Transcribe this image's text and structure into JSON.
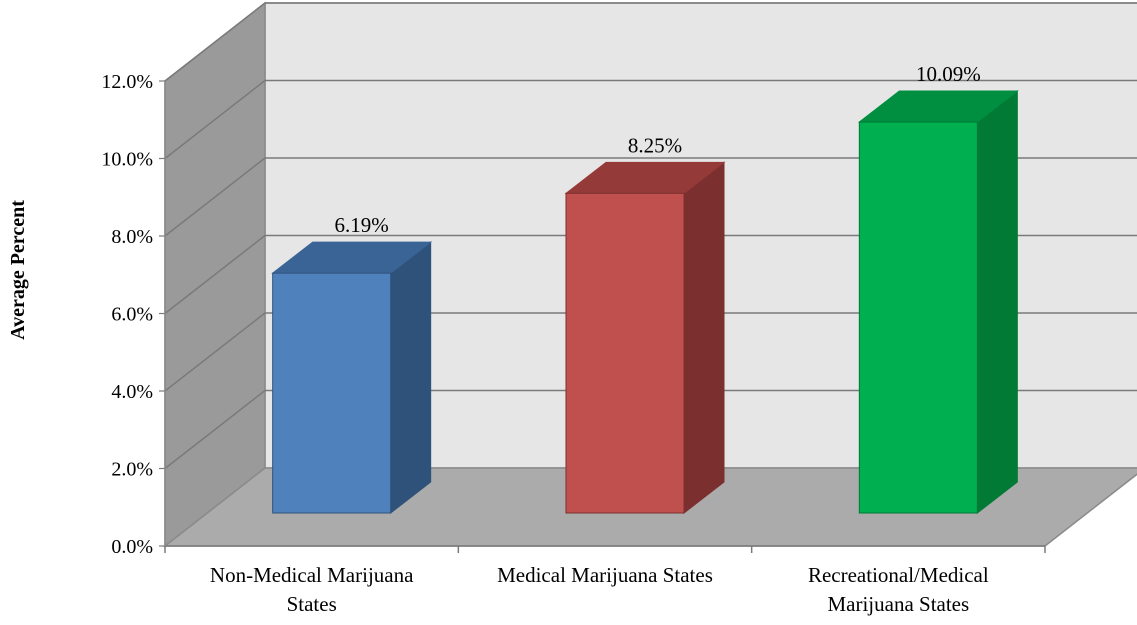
{
  "chart_data": {
    "type": "bar",
    "ylabel": "Average Percent",
    "ylim": [
      0,
      12
    ],
    "yticks": [
      0,
      2,
      4,
      6,
      8,
      10,
      12
    ],
    "ytick_labels": [
      "0.0%",
      "2.0%",
      "4.0%",
      "6.0%",
      "8.0%",
      "10.0%",
      "12.0%"
    ],
    "categories": [
      [
        "Non-Medical Marijuana",
        "States"
      ],
      [
        "Medical Marijuana States"
      ],
      [
        "Recreational/Medical",
        "Marijuana States"
      ]
    ],
    "values": [
      6.19,
      8.25,
      10.09
    ],
    "data_labels": [
      "6.19%",
      "8.25%",
      "10.09%"
    ],
    "colors": [
      {
        "front": "#4f81bd",
        "side": "#2f527a",
        "top": "#3a6496"
      },
      {
        "front": "#c0504d",
        "side": "#7b2f2e",
        "top": "#943a38"
      },
      {
        "front": "#00b050",
        "side": "#007a35",
        "top": "#008f40"
      }
    ],
    "grid": true,
    "style": "3d-column"
  }
}
